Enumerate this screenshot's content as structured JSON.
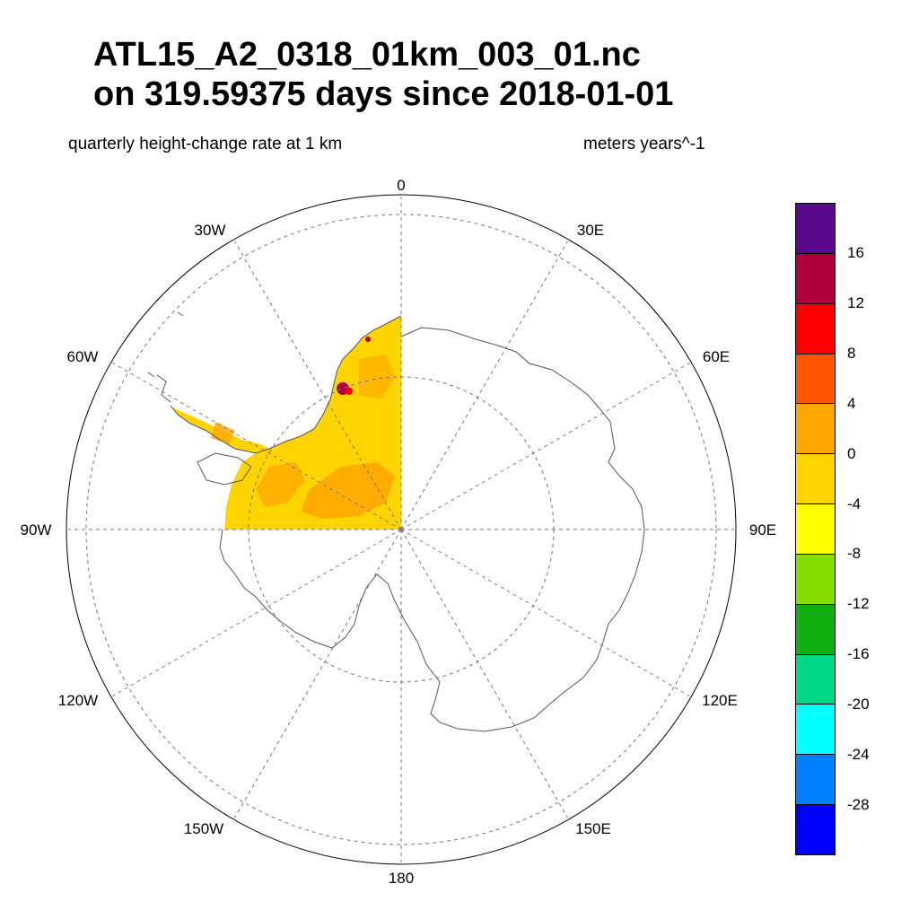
{
  "title": {
    "line1": "ATL15_A2_0318_01km_003_01.nc",
    "line2": "on 319.59375 days since 2018-01-01"
  },
  "subtitle": {
    "left": "quarterly height-change rate at 1 km",
    "right": "meters years^-1"
  },
  "map": {
    "projection": "south polar stereographic",
    "longitude_labels": {
      "lon_0": "0",
      "lon_30e": "30E",
      "lon_60e": "60E",
      "lon_90e": "90E",
      "lon_120e": "120E",
      "lon_150e": "150E",
      "lon_180": "180",
      "lon_150w": "150W",
      "lon_120w": "120W",
      "lon_90w": "90W",
      "lon_60w": "60W",
      "lon_30w": "30W"
    },
    "data_coverage": "Antarctic Peninsula and West Antarctic sector between 0 and 90W; mostly in the -4 to 0 range with some 0 to 4 and a few values above 8 near the peninsula tip"
  },
  "colorbar": {
    "colors": [
      "#5a0a8c",
      "#b0003c",
      "#ff0000",
      "#ff5500",
      "#ffa500",
      "#ffd400",
      "#ffff00",
      "#88dd00",
      "#10b010",
      "#00d886",
      "#00ffff",
      "#0080ff",
      "#0000ff"
    ],
    "tick_labels": [
      "16",
      "12",
      "8",
      "4",
      "0",
      "-4",
      "-8",
      "-12",
      "-16",
      "-20",
      "-24",
      "-28"
    ],
    "land_color": "#ffd400",
    "outline_color": "#555555"
  }
}
